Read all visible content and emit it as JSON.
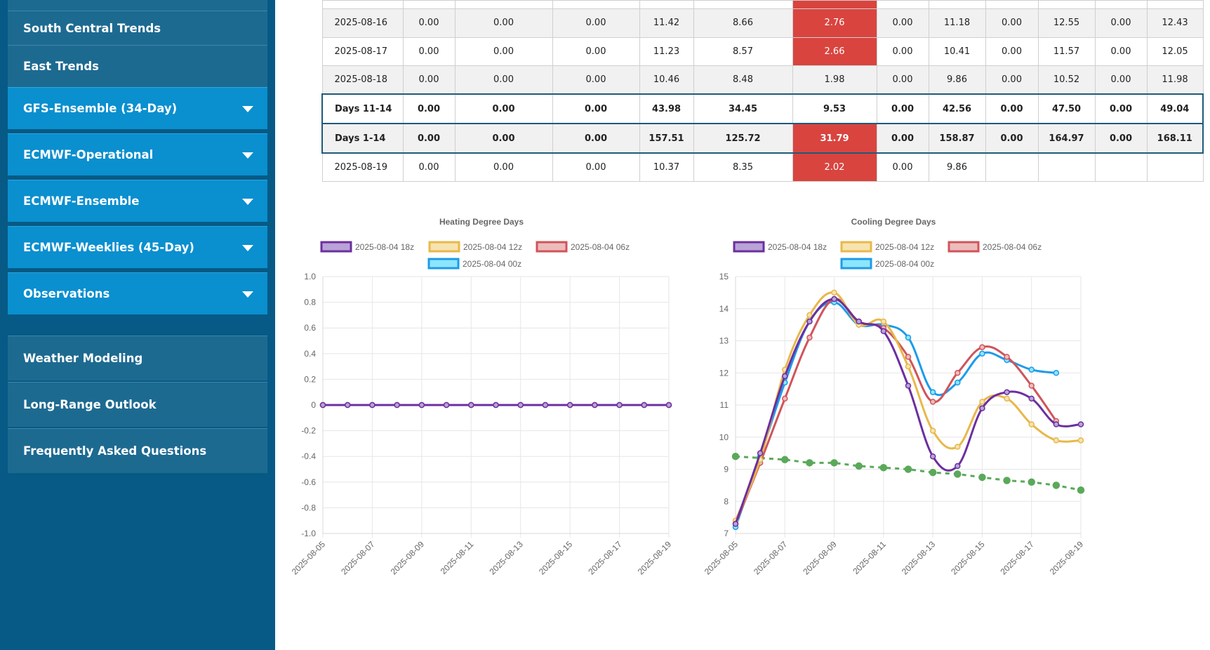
{
  "sidebar": {
    "items": [
      {
        "label": "South Central Trends",
        "style": "dark",
        "caret": false
      },
      {
        "label": "East Trends",
        "style": "dark",
        "caret": false
      },
      {
        "label": "GFS-Ensemble (34-Day)",
        "style": "blue",
        "caret": true
      },
      {
        "label": "ECMWF-Operational",
        "style": "blue",
        "caret": true
      },
      {
        "label": "ECMWF-Ensemble",
        "style": "blue",
        "caret": true
      },
      {
        "label": "ECMWF-Weeklies (45-Day)",
        "style": "blue",
        "caret": true
      },
      {
        "label": "Observations",
        "style": "blue",
        "caret": true
      },
      {
        "label": "Weather Modeling",
        "style": "dark",
        "caret": false
      },
      {
        "label": "Long-Range Outlook",
        "style": "dark",
        "caret": false
      },
      {
        "label": "Frequently Asked Questions",
        "style": "dark",
        "caret": false
      }
    ]
  },
  "table": {
    "rows": [
      {
        "type": "date",
        "cells": [
          "2025-08-16",
          "0.00",
          "0.00",
          "0.00",
          "11.42",
          "8.66",
          "2.76",
          "0.00",
          "11.18",
          "0.00",
          "12.55",
          "0.00",
          "12.43"
        ],
        "hot": [
          6
        ]
      },
      {
        "type": "date",
        "cells": [
          "2025-08-17",
          "0.00",
          "0.00",
          "0.00",
          "11.23",
          "8.57",
          "2.66",
          "0.00",
          "10.41",
          "0.00",
          "11.57",
          "0.00",
          "12.05"
        ],
        "hot": [
          6
        ]
      },
      {
        "type": "date",
        "cells": [
          "2025-08-18",
          "0.00",
          "0.00",
          "0.00",
          "10.46",
          "8.48",
          "1.98",
          "0.00",
          "9.86",
          "0.00",
          "10.52",
          "0.00",
          "11.98"
        ],
        "hot": []
      },
      {
        "type": "sum",
        "cells": [
          "Days 11-14",
          "0.00",
          "0.00",
          "0.00",
          "43.98",
          "34.45",
          "9.53",
          "0.00",
          "42.56",
          "0.00",
          "47.50",
          "0.00",
          "49.04"
        ],
        "hot": []
      },
      {
        "type": "sum",
        "cells": [
          "Days 1-14",
          "0.00",
          "0.00",
          "0.00",
          "157.51",
          "125.72",
          "31.79",
          "0.00",
          "158.87",
          "0.00",
          "164.97",
          "0.00",
          "168.11"
        ],
        "hot": [
          6
        ]
      },
      {
        "type": "date",
        "cells": [
          "2025-08-19",
          "0.00",
          "0.00",
          "0.00",
          "10.37",
          "8.35",
          "2.02",
          "0.00",
          "9.86",
          "",
          "",
          "",
          ""
        ],
        "hot": [
          6
        ]
      }
    ]
  },
  "chart_data": [
    {
      "type": "line",
      "title": "Heating Degree Days",
      "x": [
        "2025-08-05",
        "2025-08-06",
        "2025-08-07",
        "2025-08-08",
        "2025-08-09",
        "2025-08-10",
        "2025-08-11",
        "2025-08-12",
        "2025-08-13",
        "2025-08-14",
        "2025-08-15",
        "2025-08-16",
        "2025-08-17",
        "2025-08-18",
        "2025-08-19"
      ],
      "x_tick_labels": [
        "2025-08-05",
        "2025-08-07",
        "2025-08-09",
        "2025-08-11",
        "2025-08-13",
        "2025-08-15",
        "2025-08-17",
        "2025-08-19"
      ],
      "ylim": [
        -1.0,
        1.0
      ],
      "y_ticks": [
        "1.0",
        "0.8",
        "0.6",
        "0.4",
        "0.2",
        "0",
        "-0.2",
        "-0.4",
        "-0.6",
        "-0.8",
        "-1.0"
      ],
      "grid": true,
      "legend_position": "top",
      "series": [
        {
          "name": "2025-08-04 18z",
          "color": "#6b2fa0",
          "fill": "#b9a3d6",
          "values": [
            0,
            0,
            0,
            0,
            0,
            0,
            0,
            0,
            0,
            0,
            0,
            0,
            0,
            0,
            0
          ]
        },
        {
          "name": "2025-08-04 12z",
          "color": "#e8b84a",
          "fill": "#f6e3b0",
          "values": [
            0,
            0,
            0,
            0,
            0,
            0,
            0,
            0,
            0,
            0,
            0,
            0,
            0,
            0,
            0
          ]
        },
        {
          "name": "2025-08-04 06z",
          "color": "#d0545a",
          "fill": "#ecbcbc",
          "values": [
            0,
            0,
            0,
            0,
            0,
            0,
            0,
            0,
            0,
            0,
            0,
            0,
            0,
            0,
            0
          ]
        },
        {
          "name": "2025-08-04 00z",
          "color": "#1e9be8",
          "fill": "#8de6fb",
          "values": [
            0,
            0,
            0,
            0,
            0,
            0,
            0,
            0,
            0,
            0,
            0,
            0,
            0,
            0,
            0
          ]
        }
      ]
    },
    {
      "type": "line",
      "title": "Cooling Degree Days",
      "x": [
        "2025-08-05",
        "2025-08-06",
        "2025-08-07",
        "2025-08-08",
        "2025-08-09",
        "2025-08-10",
        "2025-08-11",
        "2025-08-12",
        "2025-08-13",
        "2025-08-14",
        "2025-08-15",
        "2025-08-16",
        "2025-08-17",
        "2025-08-18",
        "2025-08-19"
      ],
      "x_tick_labels": [
        "2025-08-05",
        "2025-08-07",
        "2025-08-09",
        "2025-08-11",
        "2025-08-13",
        "2025-08-15",
        "2025-08-17",
        "2025-08-19"
      ],
      "ylim": [
        7,
        15
      ],
      "y_ticks": [
        "15",
        "14",
        "13",
        "12",
        "11",
        "10",
        "9",
        "8",
        "7"
      ],
      "grid": true,
      "legend_position": "top",
      "series": [
        {
          "name": "2025-08-04 18z",
          "color": "#6b2fa0",
          "fill": "#b9a3d6",
          "values": [
            7.3,
            9.5,
            11.9,
            13.6,
            14.3,
            13.6,
            13.3,
            11.6,
            9.4,
            9.1,
            10.9,
            11.4,
            11.2,
            10.4,
            10.4
          ]
        },
        {
          "name": "2025-08-04 12z",
          "color": "#e8b84a",
          "fill": "#f6e3b0",
          "values": [
            7.4,
            9.3,
            12.1,
            13.8,
            14.5,
            13.5,
            13.6,
            12.2,
            10.2,
            9.7,
            11.1,
            11.2,
            10.4,
            9.9,
            9.9
          ]
        },
        {
          "name": "2025-08-04 06z",
          "color": "#d0545a",
          "fill": "#ecbcbc",
          "values": [
            7.3,
            9.2,
            11.2,
            13.1,
            14.3,
            13.6,
            13.4,
            12.5,
            11.1,
            12.0,
            12.8,
            12.5,
            11.6,
            10.5,
            null
          ]
        },
        {
          "name": "2025-08-04 00z",
          "color": "#1e9be8",
          "fill": "#8de6fb",
          "values": [
            7.2,
            9.4,
            11.7,
            13.6,
            14.2,
            13.5,
            13.5,
            13.1,
            11.4,
            11.7,
            12.6,
            12.4,
            12.1,
            12.0,
            null
          ]
        },
        {
          "color": "#5aa95a",
          "dashed": true,
          "values": [
            9.4,
            9.35,
            9.3,
            9.2,
            9.2,
            9.1,
            9.05,
            9.0,
            8.9,
            8.85,
            8.75,
            8.65,
            8.6,
            8.5,
            8.35
          ]
        }
      ]
    }
  ]
}
